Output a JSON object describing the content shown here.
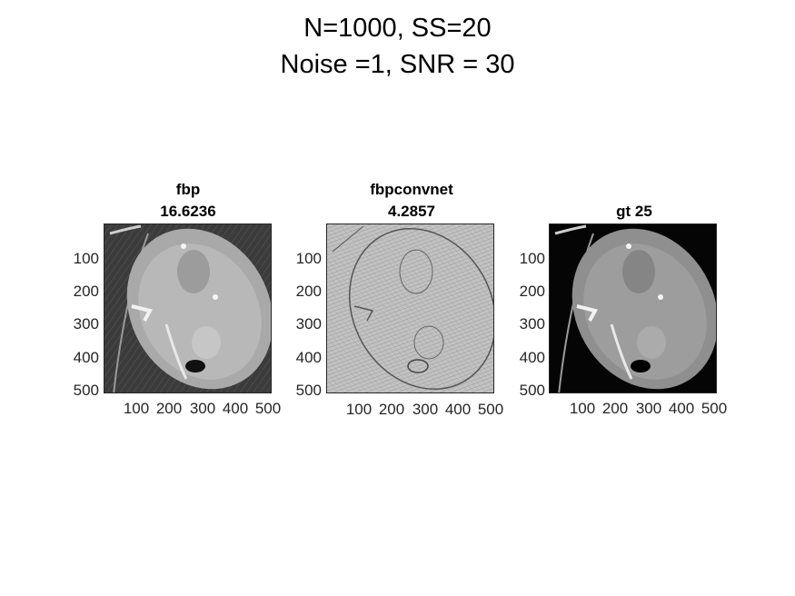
{
  "figure": {
    "suptitle_line1": "N=1000, SS=20",
    "suptitle_line2": "Noise =1, SNR = 30"
  },
  "chart_data": [
    {
      "type": "heatmap",
      "title_line1": "fbp",
      "title_line2": "16.6236",
      "colormap": "gray",
      "xlim": [
        1,
        512
      ],
      "ylim": [
        1,
        512
      ],
      "xticks": [
        "100",
        "200",
        "300",
        "400",
        "500"
      ],
      "yticks": [
        "100",
        "200",
        "300",
        "400",
        "500"
      ],
      "y_direction": "reverse"
    },
    {
      "type": "heatmap",
      "title_line1": "fbpconvnet",
      "title_line2": "4.2857",
      "colormap": "gray",
      "xlim": [
        1,
        512
      ],
      "ylim": [
        1,
        512
      ],
      "xticks": [
        "100",
        "200",
        "300",
        "400",
        "500"
      ],
      "yticks": [
        "100",
        "200",
        "300",
        "400",
        "500"
      ],
      "y_direction": "reverse"
    },
    {
      "type": "heatmap",
      "title_line1": "",
      "title_line2": "gt 25",
      "colormap": "gray",
      "xlim": [
        1,
        512
      ],
      "ylim": [
        1,
        512
      ],
      "xticks": [
        "100",
        "200",
        "300",
        "400",
        "500"
      ],
      "yticks": [
        "100",
        "200",
        "300",
        "400",
        "500"
      ],
      "y_direction": "reverse"
    }
  ]
}
